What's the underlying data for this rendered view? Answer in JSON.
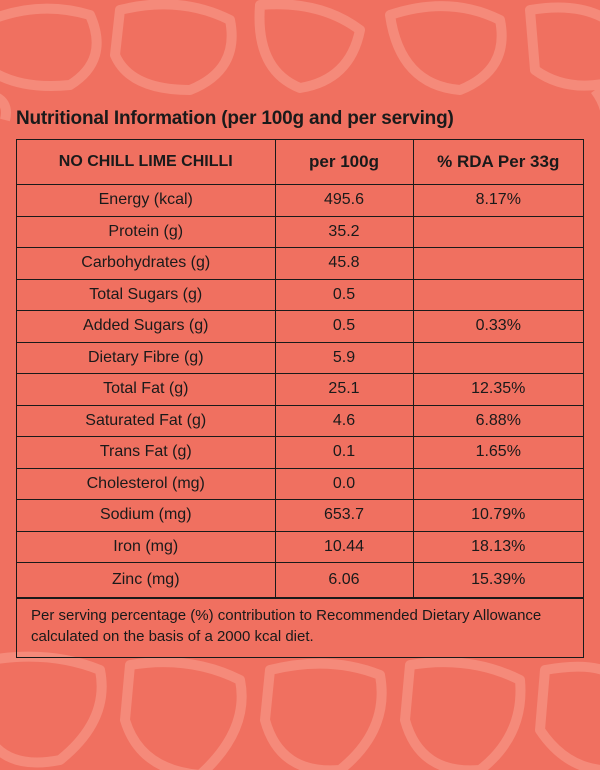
{
  "title": "Nutritional Information (per 100g and per serving)",
  "table": {
    "headers": [
      "NO CHILL LIME CHILLI",
      "per 100g",
      "% RDA Per 33g"
    ],
    "rows": [
      {
        "nutrient": "Energy (kcal)",
        "per100g": "495.6",
        "rda": "8.17%"
      },
      {
        "nutrient": "Protein (g)",
        "per100g": "35.2",
        "rda": ""
      },
      {
        "nutrient": "Carbohydrates (g)",
        "per100g": "45.8",
        "rda": ""
      },
      {
        "nutrient": "Total Sugars (g)",
        "per100g": "0.5",
        "rda": ""
      },
      {
        "nutrient": "Added Sugars (g)",
        "per100g": "0.5",
        "rda": "0.33%"
      },
      {
        "nutrient": "Dietary Fibre (g)",
        "per100g": "5.9",
        "rda": ""
      },
      {
        "nutrient": "Total Fat (g)",
        "per100g": "25.1",
        "rda": "12.35%"
      },
      {
        "nutrient": "Saturated Fat (g)",
        "per100g": "4.6",
        "rda": "6.88%"
      },
      {
        "nutrient": "Trans Fat (g)",
        "per100g": "0.1",
        "rda": "1.65%"
      },
      {
        "nutrient": "Cholesterol (mg)",
        "per100g": "0.0",
        "rda": ""
      },
      {
        "nutrient": "Sodium (mg)",
        "per100g": "653.7",
        "rda": "10.79%"
      },
      {
        "nutrient": "Iron (mg)",
        "per100g": "10.44",
        "rda": "18.13%"
      },
      {
        "nutrient": "Zinc (mg)",
        "per100g": "6.06",
        "rda": "15.39%"
      }
    ]
  },
  "footnote": "Per serving percentage (%) contribution to Recommended Dietary Allowance calculated on the basis of a 2000 kcal diet.",
  "colors": {
    "background": "#f07060",
    "pattern": "#f58a7a",
    "text": "#1a1a1a"
  }
}
